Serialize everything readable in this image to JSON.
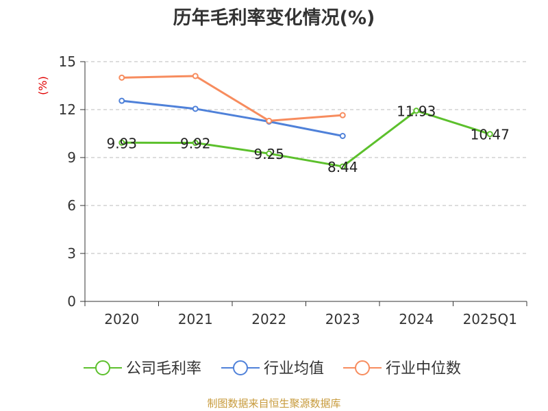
{
  "chart_data": {
    "type": "line",
    "title": "历年毛利率变化情况(%)",
    "ylabel": "(%)",
    "xlabel": "",
    "categories": [
      "2020",
      "2021",
      "2022",
      "2023",
      "2024",
      "2025Q1"
    ],
    "ylim": [
      0,
      15
    ],
    "yticks": [
      0,
      3,
      6,
      9,
      12,
      15
    ],
    "grid": "horizontal dashed",
    "legend_position": "bottom",
    "series": [
      {
        "name": "公司毛利率",
        "color": "#5cc02c",
        "values": [
          9.93,
          9.92,
          9.25,
          8.44,
          11.93,
          10.47
        ],
        "labels": [
          "9.93",
          "9.92",
          "9.25",
          "8.44",
          "11.93",
          "10.47"
        ]
      },
      {
        "name": "行业均值",
        "color": "#4f81d9",
        "values": [
          12.55,
          12.05,
          11.25,
          10.35,
          null,
          null
        ],
        "labels": []
      },
      {
        "name": "行业中位数",
        "color": "#f78c5e",
        "values": [
          14.0,
          14.1,
          11.3,
          11.65,
          null,
          null
        ],
        "labels": []
      }
    ]
  },
  "source": "制图数据来自恒生聚源数据库"
}
